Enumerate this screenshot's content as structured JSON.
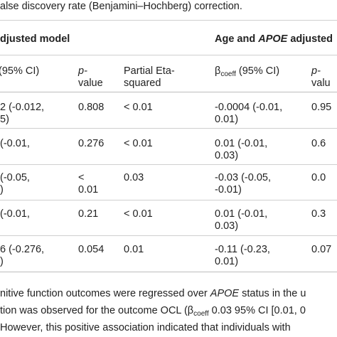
{
  "caption_top": "alse discovery rate (Benjamini–Hochberg) correction.",
  "header": {
    "group_left": "djusted model",
    "group_right_prefix": "Age and ",
    "group_right_italic": "APOE",
    "group_right_suffix": " adjusted",
    "col1_partial": "(95% CI)",
    "p_line1": "p-",
    "p_line2": "value",
    "eta_line1": "Partial Eta-",
    "eta_line2": "squared",
    "beta_symbol": "β",
    "beta_sub": "coeff",
    "beta_rest": " (95% CI)",
    "p2_line1": "p-",
    "p2_line2": "valu"
  },
  "rows": [
    {
      "c1a": "2 (-0.012,",
      "c1b": "5)",
      "p": "0.808",
      "eta": "< 0.01",
      "b2a": "-0.0004 (-0.01,",
      "b2b": "0.01)",
      "p2": "0.95"
    },
    {
      "c1a": "(-0.01,",
      "c1b": "",
      "p": "0.276",
      "eta": "< 0.01",
      "b2a": "0.01 (-0.01,",
      "b2b": "0.03)",
      "p2": "0.6"
    },
    {
      "c1a": "(-0.05,",
      "c1b": ")",
      "p": "<",
      "p_b": "0.01",
      "eta": "0.03",
      "b2a": "-0.03 (-0.05,",
      "b2b": "-0.01)",
      "p2": "0.0"
    },
    {
      "c1a": "(-0.01,",
      "c1b": "",
      "p": "0.21",
      "eta": "< 0.01",
      "b2a": "0.01 (-0.01,",
      "b2b": "0.03)",
      "p2": "0.3"
    },
    {
      "c1a": "6 (-0.276,",
      "c1b": ")",
      "p": "0.054",
      "eta": "0.01",
      "b2a": "-0.11 (-0.23,",
      "b2b": "0.01)",
      "p2": "0.07"
    }
  ],
  "footer": {
    "line1_a": "nitive function outcomes were regressed over ",
    "line1_italic": "APOE",
    "line1_b": " status in the u",
    "line2_a": "tion was observed for the outcome OCL (β",
    "line2_sub": "coeff",
    "line2_b": " 0.03 95% CI [0.01, 0",
    "line3": "However, this positive association indicated that individuals with"
  }
}
